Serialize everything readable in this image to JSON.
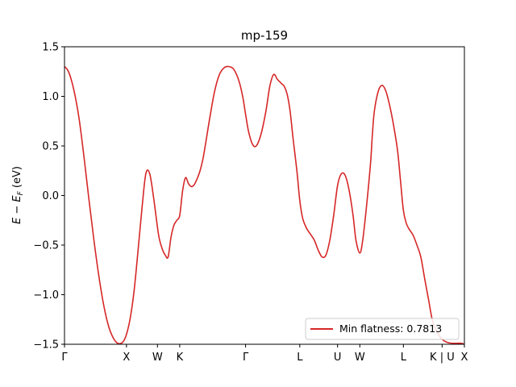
{
  "chart_data": {
    "type": "line",
    "title": "mp-159",
    "ylabel_parts": {
      "main": "E − E",
      "sub": "F",
      "suffix": " (eV)"
    },
    "ylim": [
      -1.5,
      1.5
    ],
    "yticks": [
      -1.5,
      -1.0,
      -0.5,
      0.0,
      0.5,
      1.0,
      1.5
    ],
    "ytick_labels": [
      "−1.5",
      "−1.0",
      "−0.5",
      "0.0",
      "0.5",
      "1.0",
      "1.5"
    ],
    "xlim": [
      0,
      4.13
    ],
    "xticks": [
      {
        "x": 0.0,
        "label": "Γ"
      },
      {
        "x": 0.64,
        "label": "X"
      },
      {
        "x": 0.96,
        "label": "W"
      },
      {
        "x": 1.19,
        "label": "K"
      },
      {
        "x": 1.87,
        "label": "Γ"
      },
      {
        "x": 2.43,
        "label": "L"
      },
      {
        "x": 2.82,
        "label": "U"
      },
      {
        "x": 3.05,
        "label": "W"
      },
      {
        "x": 3.5,
        "label": "L"
      },
      {
        "x": 3.9,
        "label": "K | U"
      },
      {
        "x": 4.13,
        "label": "X"
      }
    ],
    "grid": false,
    "legend_position": "lower-right",
    "series": [
      {
        "name": "Min flatness: 0.7813",
        "color": "#d62728",
        "x": [
          0.0,
          0.03,
          0.06,
          0.1,
          0.15,
          0.2,
          0.25,
          0.3,
          0.35,
          0.4,
          0.45,
          0.5,
          0.55,
          0.6,
          0.64,
          0.68,
          0.72,
          0.76,
          0.8,
          0.84,
          0.88,
          0.92,
          0.96,
          0.98,
          1.01,
          1.04,
          1.07,
          1.1,
          1.13,
          1.16,
          1.19,
          1.22,
          1.25,
          1.28,
          1.31,
          1.34,
          1.37,
          1.4,
          1.43,
          1.46,
          1.5,
          1.55,
          1.6,
          1.65,
          1.7,
          1.75,
          1.8,
          1.84,
          1.87,
          1.9,
          1.94,
          1.98,
          2.03,
          2.08,
          2.12,
          2.16,
          2.2,
          2.24,
          2.27,
          2.3,
          2.33,
          2.36,
          2.4,
          2.43,
          2.46,
          2.5,
          2.54,
          2.58,
          2.62,
          2.66,
          2.7,
          2.74,
          2.78,
          2.82,
          2.86,
          2.9,
          2.94,
          2.98,
          3.01,
          3.05,
          3.08,
          3.12,
          3.16,
          3.18,
          3.2,
          3.24,
          3.28,
          3.32,
          3.36,
          3.4,
          3.44,
          3.47,
          3.5,
          3.53,
          3.56,
          3.6,
          3.64,
          3.68,
          3.72,
          3.76,
          3.8,
          3.85,
          3.9,
          3.95,
          4.0,
          4.05,
          4.1,
          4.13
        ],
        "y": [
          1.3,
          1.27,
          1.2,
          1.05,
          0.78,
          0.4,
          -0.02,
          -0.42,
          -0.78,
          -1.08,
          -1.3,
          -1.43,
          -1.49,
          -1.48,
          -1.4,
          -1.23,
          -0.95,
          -0.55,
          -0.13,
          0.22,
          0.22,
          -0.02,
          -0.32,
          -0.44,
          -0.54,
          -0.6,
          -0.62,
          -0.42,
          -0.3,
          -0.25,
          -0.2,
          0.05,
          0.18,
          0.12,
          0.09,
          0.11,
          0.17,
          0.25,
          0.37,
          0.54,
          0.78,
          1.05,
          1.22,
          1.29,
          1.3,
          1.27,
          1.16,
          1.0,
          0.82,
          0.65,
          0.52,
          0.5,
          0.62,
          0.85,
          1.1,
          1.22,
          1.17,
          1.13,
          1.1,
          1.02,
          0.85,
          0.58,
          0.25,
          -0.05,
          -0.23,
          -0.33,
          -0.39,
          -0.45,
          -0.55,
          -0.62,
          -0.6,
          -0.45,
          -0.2,
          0.1,
          0.22,
          0.2,
          0.05,
          -0.2,
          -0.45,
          -0.58,
          -0.45,
          -0.1,
          0.32,
          0.62,
          0.85,
          1.05,
          1.11,
          1.05,
          0.9,
          0.7,
          0.45,
          0.15,
          -0.15,
          -0.28,
          -0.34,
          -0.4,
          -0.5,
          -0.62,
          -0.84,
          -1.05,
          -1.26,
          -1.38,
          -1.45,
          -1.48,
          -1.49,
          -1.49,
          -1.49,
          -1.5
        ]
      }
    ]
  }
}
